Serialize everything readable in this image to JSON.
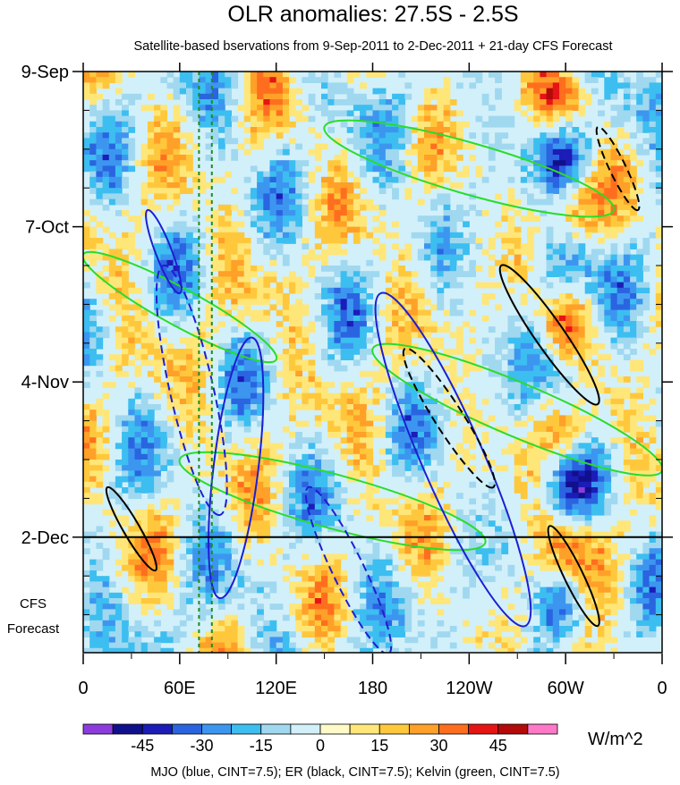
{
  "chart_data": {
    "type": "heatmap",
    "title": "OLR anomalies: 27.5S - 2.5S",
    "subtitle": "Satellite-based bservations from 9-Sep-2011 to 2-Dec-2011 + 21-day CFS Forecast",
    "x_ticks": [
      {
        "lon": 0,
        "label": "0"
      },
      {
        "lon": 60,
        "label": "60E"
      },
      {
        "lon": 120,
        "label": "120E"
      },
      {
        "lon": 180,
        "label": "180"
      },
      {
        "lon": 240,
        "label": "120W"
      },
      {
        "lon": 300,
        "label": "60W"
      },
      {
        "lon": 360,
        "label": "0"
      }
    ],
    "y_ticks": [
      {
        "day": 0,
        "label": "9-Sep"
      },
      {
        "day": 28,
        "label": "7-Oct"
      },
      {
        "day": 56,
        "label": "4-Nov"
      },
      {
        "day": 84,
        "label": "2-Dec"
      }
    ],
    "xlim": [
      0,
      360
    ],
    "ylim_days": [
      0,
      105
    ],
    "forecast_start_day": 84,
    "forecast_label": [
      "CFS",
      "Forecast"
    ],
    "vertical_markers_lon": [
      72,
      80
    ],
    "colorbar": {
      "units": "W/m^2",
      "tick_labels": [
        "-45",
        "-30",
        "-15",
        "0",
        "15",
        "30",
        "45"
      ],
      "levels": [
        -52.5,
        -45,
        -37.5,
        -30,
        -22.5,
        -15,
        -7.5,
        0,
        7.5,
        15,
        22.5,
        30,
        37.5,
        45,
        52.5
      ],
      "colors": [
        "#8c3cdc",
        "#10108c",
        "#1c1cb8",
        "#2a64e0",
        "#3c96f0",
        "#3cbef0",
        "#a0d8f0",
        "#d2f0fa",
        "#fffac8",
        "#ffe678",
        "#ffc83c",
        "#ffa028",
        "#ff6e1e",
        "#e61414",
        "#b40a0a",
        "#ff78c8"
      ]
    },
    "contours": {
      "MJO": {
        "color": "#1e1ed2",
        "cint": 7.5
      },
      "ER": {
        "color": "#000000",
        "cint": 7.5
      },
      "Kelvin": {
        "color": "#2adc2a",
        "cint": 7.5
      }
    },
    "mjo_features": [
      [
        40,
        25,
        60,
        40
      ],
      [
        50,
        35,
        85,
        80
      ],
      [
        105,
        48,
        85,
        95
      ],
      [
        140,
        75,
        190,
        105
      ],
      [
        185,
        40,
        275,
        100
      ]
    ],
    "er_features": [
      [
        15,
        75,
        45,
        90
      ],
      [
        200,
        50,
        255,
        75
      ],
      [
        260,
        35,
        320,
        60
      ],
      [
        320,
        10,
        345,
        25
      ],
      [
        290,
        82,
        320,
        100
      ]
    ],
    "kelvin_features": [
      [
        0,
        33,
        120,
        52
      ],
      [
        150,
        10,
        330,
        25
      ],
      [
        180,
        50,
        360,
        72
      ],
      [
        60,
        70,
        250,
        85
      ]
    ]
  },
  "legend_text": "MJO (blue, CINT=7.5); ER (black, CINT=7.5); Kelvin (green, CINT=7.5)"
}
